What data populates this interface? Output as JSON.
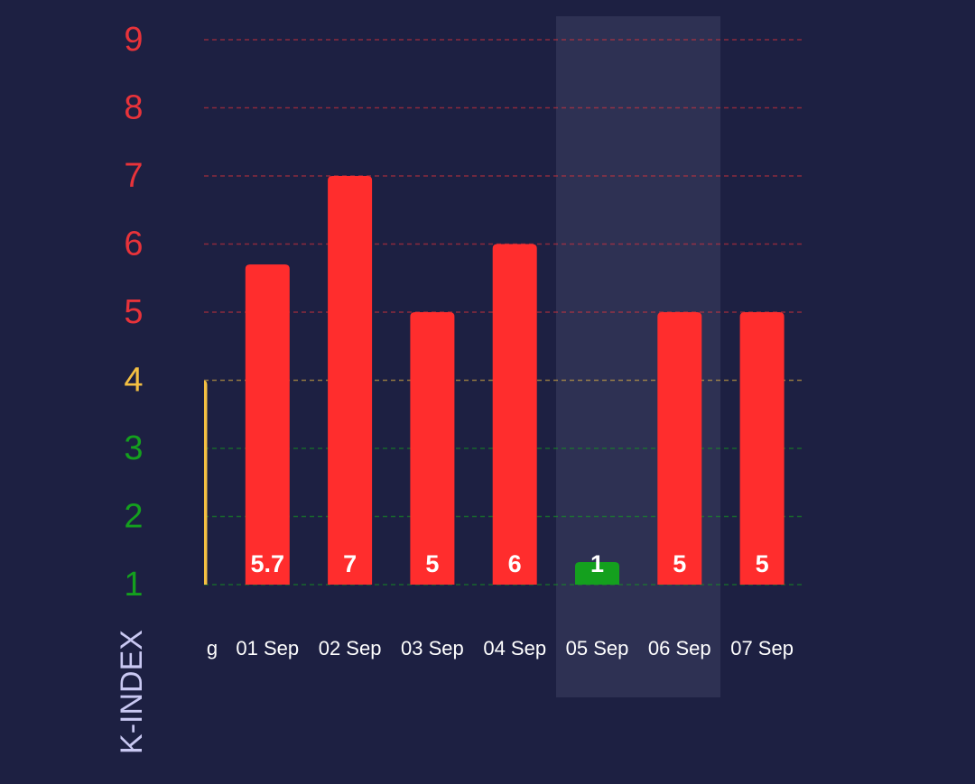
{
  "chart_data": {
    "type": "bar",
    "y_label": "K-INDEX",
    "categories": [
      "g",
      "01 Sep",
      "02 Sep",
      "03 Sep",
      "04 Sep",
      "05 Sep",
      "06 Sep",
      "07 Sep"
    ],
    "values": [
      4,
      5.7,
      7,
      5,
      6,
      1,
      5,
      5
    ],
    "colors": [
      "#f4c042",
      "#ff2d2d",
      "#ff2d2d",
      "#ff2d2d",
      "#ff2d2d",
      "#14a01e",
      "#ff2d2d",
      "#ff2d2d"
    ],
    "ylim": [
      1,
      9
    ],
    "yticks": [
      1,
      2,
      3,
      4,
      5,
      6,
      7,
      8,
      9
    ],
    "ytick_colors": [
      "#14a01e",
      "#14a01e",
      "#14a01e",
      "#f4c042",
      "#e8333a",
      "#e8333a",
      "#e8333a",
      "#e8333a",
      "#e8333a"
    ],
    "grid": true
  }
}
